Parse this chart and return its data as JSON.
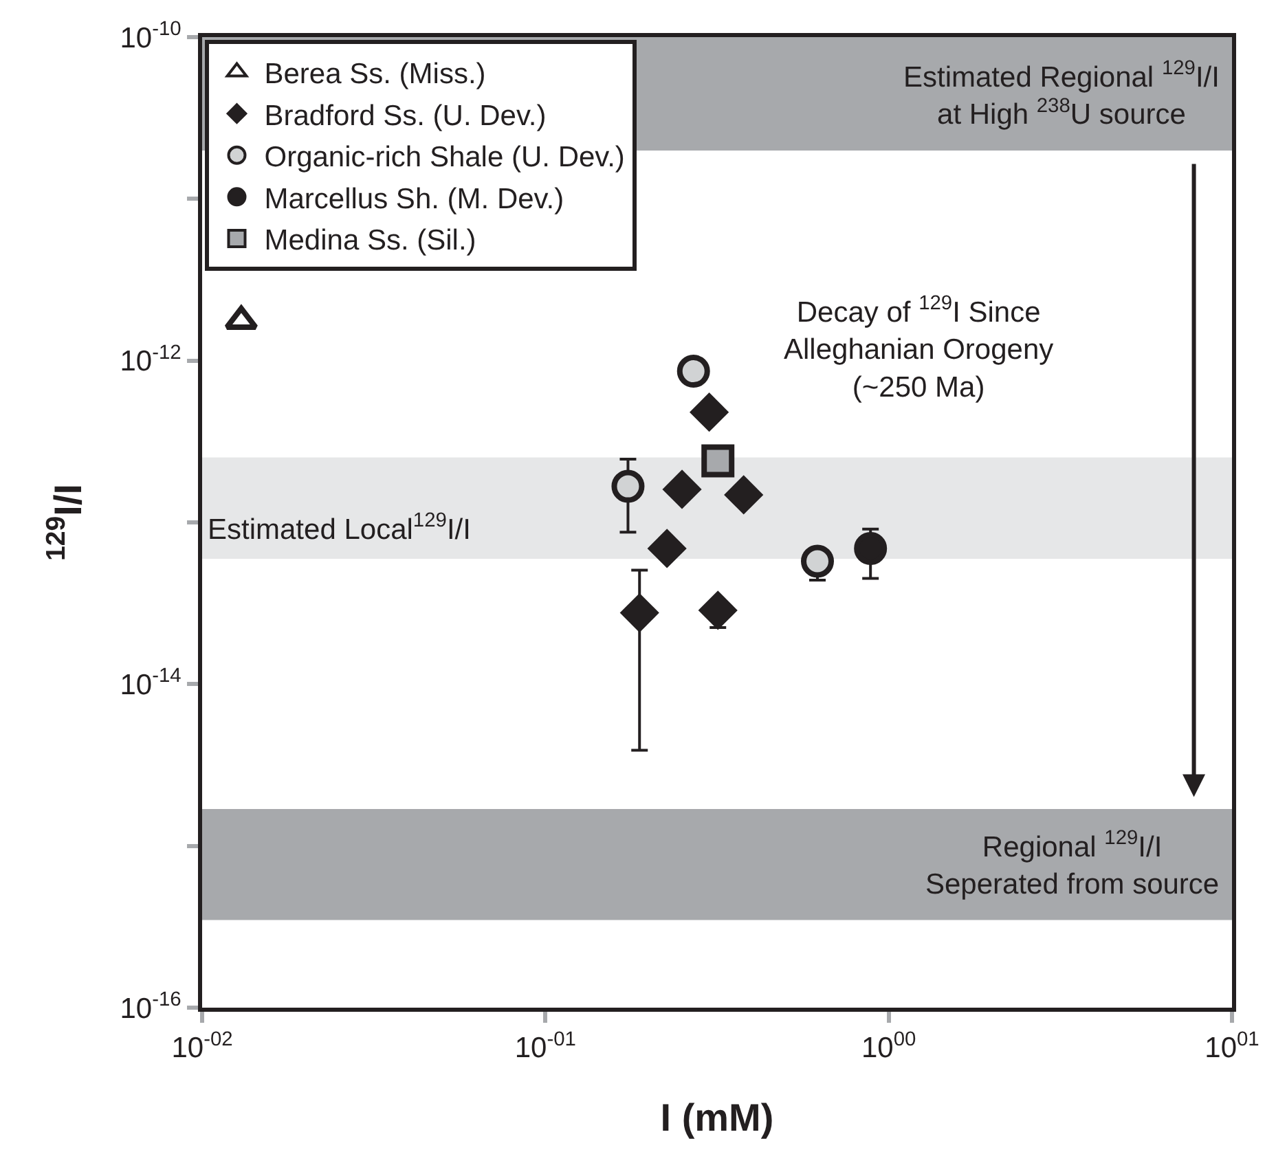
{
  "chart_data": {
    "type": "scatter",
    "xlabel": "I (mM)",
    "ylabel": "$^{129}$I/I",
    "log": "xy",
    "grid": false,
    "legend": "top left",
    "xlim": [
      0.01,
      10
    ],
    "ylim": [
      1e-16,
      1e-10
    ],
    "xticks": [
      {
        "value": 0.01,
        "label": "10$^{-02}$"
      },
      {
        "value": 0.1,
        "label": "10$^{-01}$"
      },
      {
        "value": 1,
        "label": "10$^{00}$"
      },
      {
        "value": 10,
        "label": "10$^{01}$"
      }
    ],
    "yticks": [
      {
        "value": 1e-16,
        "label": "10$^{-16}$"
      },
      {
        "value": 1e-15,
        "label": null
      },
      {
        "value": 1e-14,
        "label": "10$^{-14}$"
      },
      {
        "value": 1e-13,
        "label": null
      },
      {
        "value": 1e-12,
        "label": "10$^{-12}$"
      },
      {
        "value": 1e-11,
        "label": null
      },
      {
        "value": 1e-10,
        "label": "10$^{-10}$"
      }
    ],
    "series": [
      {
        "name": "Berea Ss. (Miss.)",
        "color": "#231f20",
        "marker": "triangle",
        "x": [
          0.013
        ],
        "values": [
          1.76e-12
        ]
      },
      {
        "name": "Bradford Ss. (U. Dev.)",
        "color": "#231f20",
        "marker": "diamond",
        "x": [
          0.3,
          0.25,
          0.378,
          0.226,
          0.188,
          0.318
        ],
        "values": [
          4.8e-13,
          1.6e-13,
          1.48e-13,
          6.9e-14,
          2.76e-14,
          2.86e-14
        ],
        "errors": [
          null,
          null,
          null,
          null,
          [
            3.9e-15,
            5.06e-14
          ],
          [
            2.24e-14,
            2.86e-14
          ]
        ]
      },
      {
        "name": "Organic-rich Shale (U. Dev.)",
        "color": "#d1d3d4",
        "marker": "circle",
        "x": [
          0.27,
          0.174,
          0.62
        ],
        "values": [
          8.6e-13,
          1.67e-13,
          5.75e-14
        ],
        "errors": [
          null,
          [
            8.7e-14,
            2.46e-13
          ],
          [
            4.4e-14,
            5.75e-14
          ]
        ]
      },
      {
        "name": "Marcellus Sh. (M. Dev.)",
        "color": "#231f20",
        "marker": "circle",
        "x": [
          0.885
        ],
        "values": [
          6.9e-14
        ],
        "errors": [
          [
            4.5e-14,
            9.1e-14
          ]
        ]
      },
      {
        "name": "Medina Ss. (Sil.)",
        "color": "#a7a9ac",
        "marker": "square",
        "x": [
          0.318
        ],
        "values": [
          2.4e-13
        ]
      }
    ],
    "bands": [
      {
        "axis": "y",
        "from": 1.99e-11,
        "to": 1e-10,
        "label": "Estimated Regional $^{129}$I/I\nat High $^{238}$U source",
        "color": "#a7a9ac"
      },
      {
        "axis": "y",
        "from": 5.96e-14,
        "to": 2.52e-13,
        "label": "Estimated Local$^{129}$I/I",
        "color": "#e6e7e8"
      },
      {
        "axis": "y",
        "from": 3.48e-16,
        "to": 1.69e-15,
        "label": "Regional $^{129}$I/I\nSeperated from source",
        "color": "#a7a9ac"
      }
    ],
    "annotations": [
      "Decay of $^{129}$I Since\nAlleghanian Orogeny\n(~250 Ma)"
    ]
  }
}
